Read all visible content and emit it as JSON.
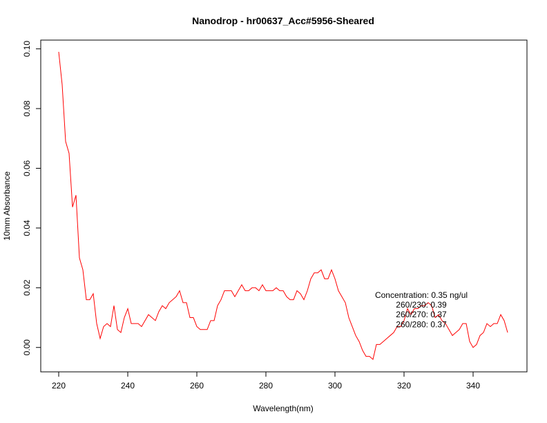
{
  "chart_data": {
    "type": "line",
    "title": "Nanodrop - hr00637_Acc#5956-Sheared",
    "xlabel": "Wavelength(nm)",
    "ylabel": "10mm Absorbance",
    "xlim": [
      220,
      350
    ],
    "ylim": [
      -0.004,
      0.099
    ],
    "x_ticks": [
      220,
      240,
      260,
      280,
      300,
      320,
      340
    ],
    "y_ticks": [
      0.0,
      0.02,
      0.04,
      0.06,
      0.08,
      0.1
    ],
    "x_tick_labels": [
      "220",
      "240",
      "260",
      "280",
      "300",
      "320",
      "340"
    ],
    "y_tick_labels": [
      "0.00",
      "0.02",
      "0.04",
      "0.06",
      "0.08",
      "0.10"
    ],
    "grid": false,
    "line_color": "#ff0000",
    "annotations": [
      {
        "text": "Concentration: 0.35 ng/ul",
        "x": 318.0,
        "y": 0.0175
      },
      {
        "text": "260/230: 0.39",
        "x": 318.0,
        "y": 0.0143
      },
      {
        "text": "260/270: 0.37",
        "x": 318.0,
        "y": 0.011
      },
      {
        "text": "260/280: 0.37",
        "x": 318.0,
        "y": 0.0077
      }
    ],
    "series": [
      {
        "name": "",
        "x": [
          220,
          221,
          222,
          223,
          224,
          225,
          226,
          227,
          228,
          229,
          230,
          231,
          232,
          233,
          234,
          235,
          236,
          237,
          238,
          239,
          240,
          241,
          242,
          243,
          244,
          245,
          246,
          247,
          248,
          249,
          250,
          251,
          252,
          253,
          254,
          255,
          256,
          257,
          258,
          259,
          260,
          261,
          262,
          263,
          264,
          265,
          266,
          267,
          268,
          269,
          270,
          271,
          272,
          273,
          274,
          275,
          276,
          277,
          278,
          279,
          280,
          281,
          282,
          283,
          284,
          285,
          286,
          287,
          288,
          289,
          290,
          291,
          292,
          293,
          294,
          295,
          296,
          297,
          298,
          299,
          300,
          301,
          302,
          303,
          304,
          305,
          306,
          307,
          308,
          309,
          310,
          311,
          312,
          313,
          314,
          315,
          316,
          317,
          318,
          319,
          320,
          321,
          322,
          323,
          324,
          325,
          326,
          327,
          328,
          329,
          330,
          331,
          332,
          333,
          334,
          335,
          336,
          337,
          338,
          339,
          340,
          341,
          342,
          343,
          344,
          345,
          346,
          347,
          348,
          349,
          350
        ],
        "y": [
          0.099,
          0.088,
          0.069,
          0.065,
          0.047,
          0.051,
          0.03,
          0.026,
          0.016,
          0.016,
          0.018,
          0.008,
          0.003,
          0.007,
          0.008,
          0.007,
          0.014,
          0.006,
          0.005,
          0.01,
          0.013,
          0.008,
          0.008,
          0.008,
          0.007,
          0.009,
          0.011,
          0.01,
          0.009,
          0.012,
          0.014,
          0.013,
          0.015,
          0.016,
          0.017,
          0.019,
          0.015,
          0.015,
          0.01,
          0.01,
          0.007,
          0.006,
          0.006,
          0.006,
          0.009,
          0.009,
          0.014,
          0.016,
          0.019,
          0.019,
          0.019,
          0.017,
          0.019,
          0.021,
          0.019,
          0.019,
          0.02,
          0.02,
          0.019,
          0.021,
          0.019,
          0.019,
          0.019,
          0.02,
          0.019,
          0.019,
          0.017,
          0.016,
          0.016,
          0.019,
          0.018,
          0.016,
          0.019,
          0.023,
          0.025,
          0.025,
          0.026,
          0.023,
          0.023,
          0.026,
          0.023,
          0.019,
          0.017,
          0.015,
          0.01,
          0.007,
          0.004,
          0.002,
          -0.001,
          -0.003,
          -0.003,
          -0.004,
          0.001,
          0.001,
          0.002,
          0.003,
          0.004,
          0.005,
          0.007,
          0.007,
          0.009,
          0.013,
          0.011,
          0.013,
          0.013,
          0.014,
          0.014,
          0.015,
          0.014,
          0.01,
          0.011,
          0.009,
          0.008,
          0.006,
          0.004,
          0.005,
          0.006,
          0.008,
          0.008,
          0.002,
          0.0,
          0.001,
          0.004,
          0.005,
          0.008,
          0.007,
          0.008,
          0.008,
          0.011,
          0.009,
          0.005
        ]
      }
    ]
  }
}
